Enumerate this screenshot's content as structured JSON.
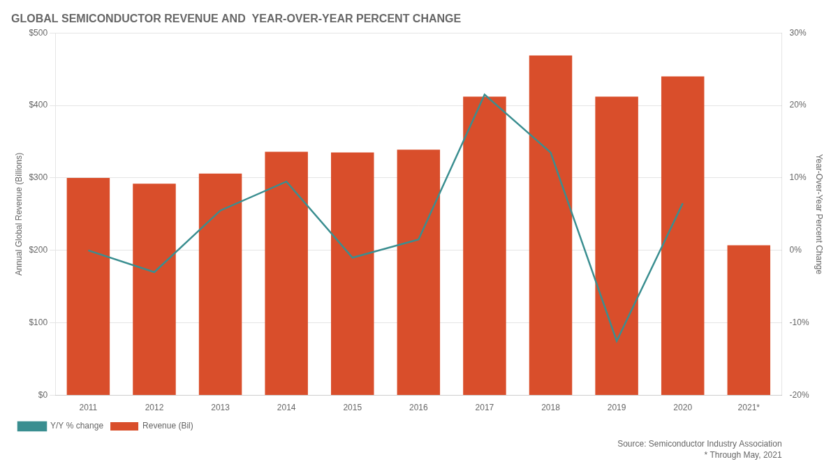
{
  "chart_data": {
    "type": "bar",
    "title": "GLOBAL SEMICONDUCTOR REVENUE AND  YEAR-OVER-YEAR PERCENT CHANGE",
    "categories": [
      "2011",
      "2012",
      "2013",
      "2014",
      "2015",
      "2016",
      "2017",
      "2018",
      "2019",
      "2020",
      "2021*"
    ],
    "series": [
      {
        "name": "Revenue (Bil)",
        "type": "bar",
        "color": "#D94E2B",
        "values": [
          300,
          292,
          306,
          336,
          335,
          339,
          412,
          469,
          412,
          440,
          207
        ]
      },
      {
        "name": "Y/Y % change",
        "type": "line",
        "axis": "y2",
        "color": "#3A8E90",
        "values": [
          0.0,
          -3.0,
          5.5,
          9.5,
          -1.0,
          1.5,
          21.5,
          13.5,
          -12.5,
          6.5,
          null
        ]
      }
    ],
    "ylabel": "Annual Global Revenue (Billions)",
    "y2label": "Year-Over-Year Percent Change",
    "ylim": [
      0,
      500
    ],
    "yticks": [
      {
        "value": 0,
        "label": "$0"
      },
      {
        "value": 100,
        "label": "$100"
      },
      {
        "value": 200,
        "label": "$200"
      },
      {
        "value": 300,
        "label": "$300"
      },
      {
        "value": 400,
        "label": "$400"
      },
      {
        "value": 500,
        "label": "$500"
      }
    ],
    "y2lim": [
      -20,
      30
    ],
    "y2ticks": [
      {
        "value": -20,
        "label": "-20%"
      },
      {
        "value": -10,
        "label": "-10%"
      },
      {
        "value": 0,
        "label": "0%"
      },
      {
        "value": 10,
        "label": "10%"
      },
      {
        "value": 20,
        "label": "20%"
      },
      {
        "value": 30,
        "label": "30%"
      }
    ],
    "grid": true,
    "legend": "lower left",
    "annotations": [
      "Source: Semiconductor Industry Association",
      "* Through May, 2021"
    ]
  }
}
